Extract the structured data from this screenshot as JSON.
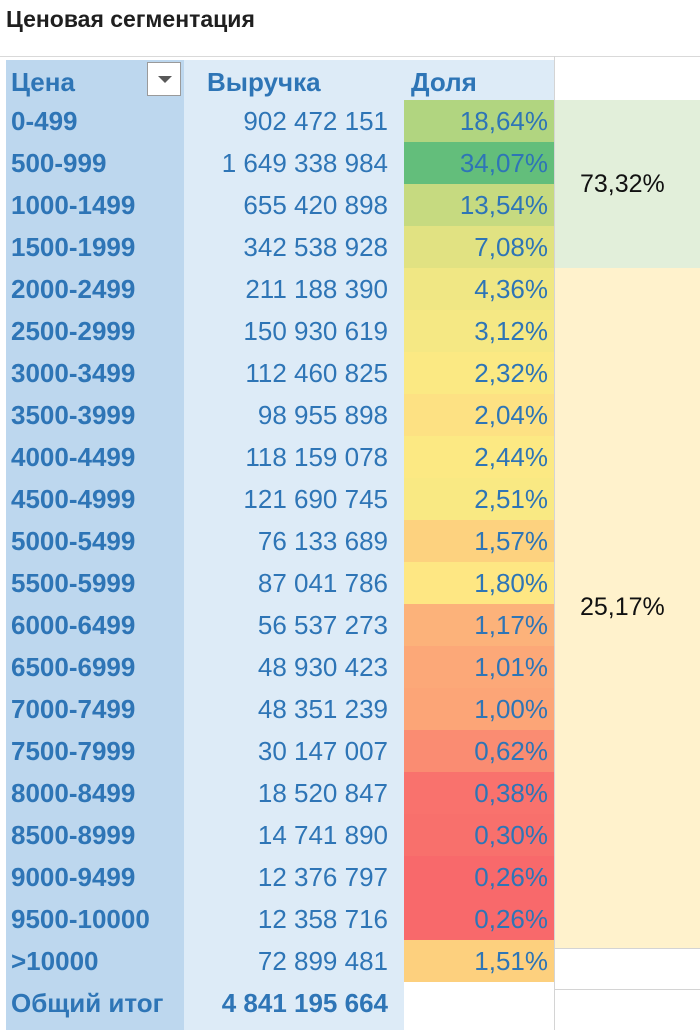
{
  "title": "Ценовая сегментация",
  "headers": {
    "price": "Цена",
    "revenue": "Выручка",
    "share": "Доля"
  },
  "rows": [
    {
      "price": "0-499",
      "revenue": "902 472 151",
      "share": "18,64%",
      "color": "#b1d580"
    },
    {
      "price": "500-999",
      "revenue": "1 649 338 984",
      "share": "34,07%",
      "color": "#63be7b"
    },
    {
      "price": "1000-1499",
      "revenue": "655 420 898",
      "share": "13,54%",
      "color": "#c6da80"
    },
    {
      "price": "1500-1999",
      "revenue": "342 538 928",
      "share": "7,08%",
      "color": "#e1e282"
    },
    {
      "price": "2000-2499",
      "revenue": "211 188 390",
      "share": "4,36%",
      "color": "#f0e784"
    },
    {
      "price": "2500-2999",
      "revenue": "150 930 619",
      "share": "3,12%",
      "color": "#f5e884"
    },
    {
      "price": "3000-3499",
      "revenue": "112 460 825",
      "share": "2,32%",
      "color": "#fbe983"
    },
    {
      "price": "3500-3999",
      "revenue": "98 955 898",
      "share": "2,04%",
      "color": "#fde183"
    },
    {
      "price": "4000-4499",
      "revenue": "118 159 078",
      "share": "2,44%",
      "color": "#fce983"
    },
    {
      "price": "4500-4999",
      "revenue": "121 690 745",
      "share": "2,51%",
      "color": "#f9e983"
    },
    {
      "price": "5000-5499",
      "revenue": "76 133 689",
      "share": "1,57%",
      "color": "#fdd27f"
    },
    {
      "price": "5500-5999",
      "revenue": "87 041 786",
      "share": "1,80%",
      "color": "#fee783"
    },
    {
      "price": "6000-6499",
      "revenue": "56 537 273",
      "share": "1,17%",
      "color": "#fcb27a"
    },
    {
      "price": "6500-6999",
      "revenue": "48 930 423",
      "share": "1,01%",
      "color": "#fca878"
    },
    {
      "price": "7000-7499",
      "revenue": "48 351 239",
      "share": "1,00%",
      "color": "#fca577"
    },
    {
      "price": "7500-7999",
      "revenue": "30 147 007",
      "share": "0,62%",
      "color": "#fa8c72"
    },
    {
      "price": "8000-8499",
      "revenue": "18 520 847",
      "share": "0,38%",
      "color": "#f9726d"
    },
    {
      "price": "8500-8999",
      "revenue": "14 741 890",
      "share": "0,30%",
      "color": "#f8706c"
    },
    {
      "price": "9000-9499",
      "revenue": "12 376 797",
      "share": "0,26%",
      "color": "#f8696b"
    },
    {
      "price": "9500-10000",
      "revenue": "12 358 716",
      "share": "0,26%",
      "color": "#f8696b"
    },
    {
      "price": ">10000",
      "revenue": "72 899 481",
      "share": "1,51%",
      "color": "#fdd07e"
    }
  ],
  "total": {
    "label": "Общий итог",
    "revenue": "4 841 195 664"
  },
  "segments": [
    {
      "value": "73,32%",
      "color": "#e2efda"
    },
    {
      "value": "25,17%",
      "color": "#fff2cc"
    }
  ]
}
